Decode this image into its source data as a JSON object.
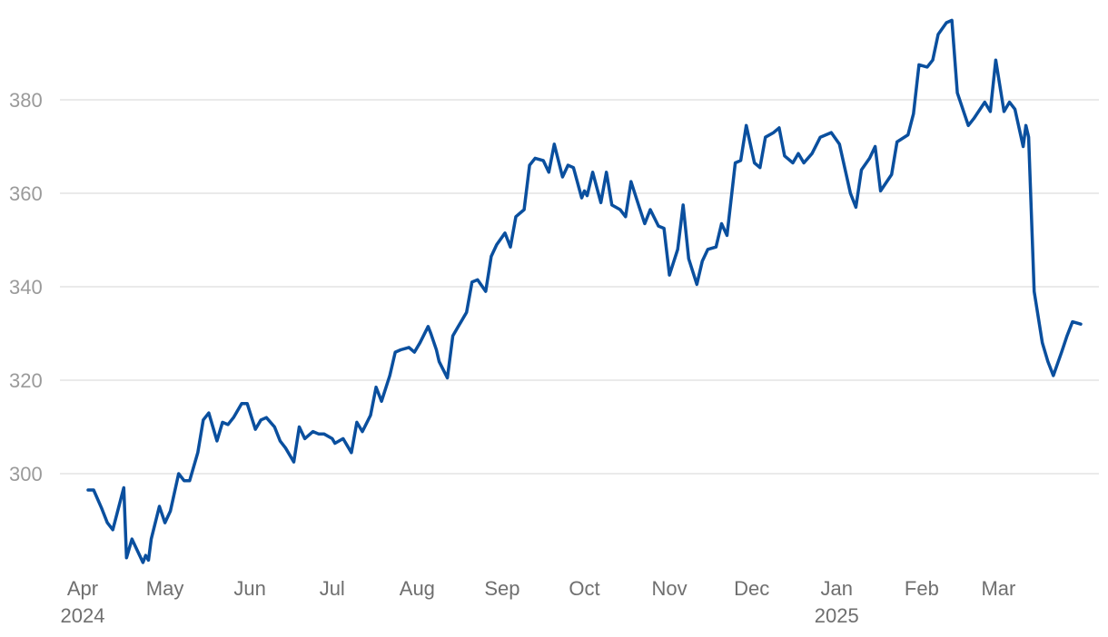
{
  "chart_data": {
    "type": "line",
    "title": "",
    "xlabel": "",
    "ylabel": "",
    "ylim": [
      280,
      398
    ],
    "xlim": [
      "2024-04-01",
      "2025-03-31"
    ],
    "grid": true,
    "legend": "none",
    "line_color": "#0a4f9e",
    "y_ticks": [
      300,
      320,
      340,
      360,
      380
    ],
    "y_tick_labels": [
      "300",
      "320",
      "340",
      "360",
      "380"
    ],
    "x_ticks": [
      {
        "date": "2024-04-01",
        "label": "Apr",
        "sublabel": "2024"
      },
      {
        "date": "2024-05-01",
        "label": "May",
        "sublabel": ""
      },
      {
        "date": "2024-06-01",
        "label": "Jun",
        "sublabel": ""
      },
      {
        "date": "2024-07-01",
        "label": "Jul",
        "sublabel": ""
      },
      {
        "date": "2024-08-01",
        "label": "Aug",
        "sublabel": ""
      },
      {
        "date": "2024-09-01",
        "label": "Sep",
        "sublabel": ""
      },
      {
        "date": "2024-10-01",
        "label": "Oct",
        "sublabel": ""
      },
      {
        "date": "2024-11-01",
        "label": "Nov",
        "sublabel": ""
      },
      {
        "date": "2024-12-01",
        "label": "Dec",
        "sublabel": ""
      },
      {
        "date": "2025-01-01",
        "label": "Jan",
        "sublabel": "2025"
      },
      {
        "date": "2025-02-01",
        "label": "Feb",
        "sublabel": ""
      },
      {
        "date": "2025-03-01",
        "label": "Mar",
        "sublabel": ""
      }
    ],
    "series": [
      {
        "x": [
          "2024-04-03",
          "2024-04-05",
          "2024-04-08",
          "2024-04-10",
          "2024-04-12",
          "2024-04-16",
          "2024-04-17",
          "2024-04-19",
          "2024-04-23",
          "2024-04-24",
          "2024-04-25",
          "2024-04-26",
          "2024-04-29",
          "2024-05-01",
          "2024-05-03",
          "2024-05-06",
          "2024-05-08",
          "2024-05-10",
          "2024-05-13",
          "2024-05-15",
          "2024-05-17",
          "2024-05-20",
          "2024-05-22",
          "2024-05-24",
          "2024-05-26",
          "2024-05-29",
          "2024-05-31",
          "2024-06-03",
          "2024-06-05",
          "2024-06-07",
          "2024-06-10",
          "2024-06-12",
          "2024-06-14",
          "2024-06-17",
          "2024-06-19",
          "2024-06-21",
          "2024-06-24",
          "2024-06-26",
          "2024-06-28",
          "2024-07-01",
          "2024-07-02",
          "2024-07-05",
          "2024-07-08",
          "2024-07-10",
          "2024-07-12",
          "2024-07-15",
          "2024-07-17",
          "2024-07-19",
          "2024-07-22",
          "2024-07-24",
          "2024-07-26",
          "2024-07-29",
          "2024-07-31",
          "2024-08-02",
          "2024-08-05",
          "2024-08-06",
          "2024-08-08",
          "2024-08-09",
          "2024-08-12",
          "2024-08-14",
          "2024-08-16",
          "2024-08-19",
          "2024-08-21",
          "2024-08-23",
          "2024-08-26",
          "2024-08-28",
          "2024-08-30",
          "2024-09-02",
          "2024-09-04",
          "2024-09-06",
          "2024-09-09",
          "2024-09-11",
          "2024-09-13",
          "2024-09-16",
          "2024-09-18",
          "2024-09-20",
          "2024-09-23",
          "2024-09-25",
          "2024-09-27",
          "2024-09-30",
          "2024-10-01",
          "2024-10-02",
          "2024-10-04",
          "2024-10-07",
          "2024-10-09",
          "2024-10-11",
          "2024-10-14",
          "2024-10-16",
          "2024-10-18",
          "2024-10-21",
          "2024-10-23",
          "2024-10-25",
          "2024-10-28",
          "2024-10-30",
          "2024-11-01",
          "2024-11-04",
          "2024-11-06",
          "2024-11-08",
          "2024-11-11",
          "2024-11-13",
          "2024-11-15",
          "2024-11-18",
          "2024-11-20",
          "2024-11-22",
          "2024-11-25",
          "2024-11-27",
          "2024-11-29",
          "2024-12-02",
          "2024-12-04",
          "2024-12-06",
          "2024-12-09",
          "2024-12-11",
          "2024-12-13",
          "2024-12-16",
          "2024-12-18",
          "2024-12-20",
          "2024-12-23",
          "2024-12-26",
          "2024-12-30",
          "2025-01-02",
          "2025-01-06",
          "2025-01-08",
          "2025-01-10",
          "2025-01-13",
          "2025-01-15",
          "2025-01-17",
          "2025-01-21",
          "2025-01-23",
          "2025-01-27",
          "2025-01-29",
          "2025-01-31",
          "2025-02-03",
          "2025-02-05",
          "2025-02-07",
          "2025-02-10",
          "2025-02-12",
          "2025-02-14",
          "2025-02-18",
          "2025-02-20",
          "2025-02-24",
          "2025-02-26",
          "2025-02-28",
          "2025-03-03",
          "2025-03-05",
          "2025-03-07",
          "2025-03-10",
          "2025-03-11",
          "2025-03-12",
          "2025-03-14",
          "2025-03-17",
          "2025-03-19",
          "2025-03-21",
          "2025-03-24",
          "2025-03-26",
          "2025-03-28",
          "2025-03-31"
        ],
        "y": [
          296.5,
          296.5,
          292.5,
          289.5,
          288.0,
          297.0,
          282.0,
          286.0,
          281.0,
          282.5,
          281.5,
          286.0,
          293.0,
          289.5,
          292.0,
          300.0,
          298.5,
          298.5,
          304.5,
          311.5,
          313.0,
          307.0,
          311.0,
          310.5,
          312.0,
          315.0,
          315.0,
          309.5,
          311.5,
          312.0,
          310.0,
          307.0,
          305.5,
          302.5,
          310.0,
          307.5,
          309.0,
          308.5,
          308.5,
          307.5,
          306.5,
          307.5,
          304.5,
          311.0,
          309.0,
          312.5,
          318.5,
          315.5,
          321.0,
          326.0,
          326.5,
          327.0,
          326.0,
          328.0,
          331.5,
          330.0,
          326.5,
          324.0,
          320.5,
          329.5,
          331.5,
          334.5,
          341.0,
          341.5,
          339.0,
          346.5,
          349.0,
          351.5,
          348.5,
          355.0,
          356.5,
          366.0,
          367.5,
          367.0,
          364.5,
          370.5,
          363.5,
          366.0,
          365.5,
          359.0,
          360.5,
          359.5,
          364.5,
          358.0,
          364.5,
          357.5,
          356.5,
          355.0,
          362.5,
          357.0,
          353.5,
          356.5,
          353.0,
          352.5,
          342.5,
          348.0,
          357.5,
          346.0,
          340.5,
          345.5,
          348.0,
          348.5,
          353.5,
          351.0,
          366.5,
          367.0,
          374.5,
          366.5,
          365.5,
          372.0,
          373.0,
          374.0,
          368.0,
          366.5,
          368.5,
          366.5,
          368.5,
          372.0,
          373.0,
          370.5,
          360.0,
          357.0,
          365.0,
          367.5,
          370.0,
          360.5,
          364.0,
          371.0,
          372.5,
          377.0,
          387.5,
          387.0,
          388.5,
          394.0,
          396.5,
          397.0,
          381.5,
          374.5,
          376.0,
          379.5,
          377.5,
          388.5,
          377.5,
          379.5,
          378.0,
          370.0,
          374.5,
          372.0,
          339.0,
          328.0,
          324.0,
          321.0,
          326.0,
          329.5,
          332.5,
          332.0
        ]
      }
    ]
  }
}
